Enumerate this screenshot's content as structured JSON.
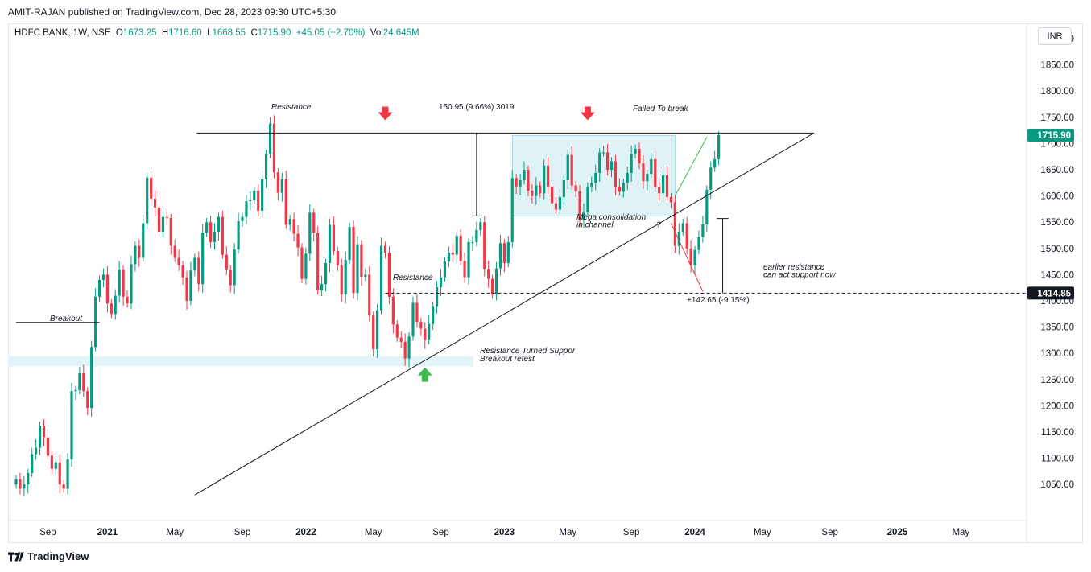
{
  "header": {
    "published_line": "AMIT-RAJAN published on TradingView.com, Dec 28, 2023 09:30 UTC+5:30"
  },
  "legend": {
    "symbol": "HDFC BANK, 1W, NSE",
    "o_label": "O",
    "o_value": "1673.25",
    "h_label": "H",
    "h_value": "1716.60",
    "l_label": "L",
    "l_value": "1668.55",
    "c_label": "C",
    "c_value": "1715.90",
    "change": "+45.05 (+2.70%)",
    "vol_label": "Vol",
    "vol_value": "24.645M"
  },
  "currency_button": "INR",
  "footer": {
    "brand": "TradingView"
  },
  "colors": {
    "up": "#089981",
    "down": "#f23645",
    "text": "#131722",
    "grid": "#e0e3eb",
    "zone": "#e3f4f9",
    "box": "#dff3f6"
  },
  "chart_data": {
    "type": "candlestick",
    "title": "HDFC BANK, 1W, NSE",
    "y_axis_ticks": [
      "1050.00",
      "1100.00",
      "1150.00",
      "1200.00",
      "1250.00",
      "1300.00",
      "1350.00",
      "1400.00",
      "1450.00",
      "1500.00",
      "1550.00",
      "1600.00",
      "1650.00",
      "1700.00",
      "1750.00",
      "1800.00",
      "1850.00",
      "1900.00"
    ],
    "y_tick_values": [
      1050,
      1100,
      1150,
      1200,
      1250,
      1300,
      1350,
      1400,
      1450,
      1500,
      1550,
      1600,
      1650,
      1700,
      1750,
      1800,
      1850,
      1900
    ],
    "ylim": [
      1030,
      1940
    ],
    "x_axis_labels": [
      "Sep",
      "2021",
      "May",
      "Sep",
      "2022",
      "May",
      "Sep",
      "2023",
      "May",
      "Sep",
      "2024",
      "May",
      "Sep",
      "2025",
      "May"
    ],
    "x_label_weeks": [
      8,
      23,
      40,
      57,
      73,
      90,
      107,
      123,
      139,
      155,
      171,
      188,
      205,
      222,
      238
    ],
    "price_labels": [
      {
        "value": 1715.9,
        "text": "1715.90",
        "color": "#089981"
      },
      {
        "value": 1414.85,
        "text": "1414.85",
        "color": "#131722"
      }
    ],
    "closes": [
      1060,
      1042,
      1050,
      1072,
      1108,
      1120,
      1162,
      1140,
      1105,
      1080,
      1092,
      1050,
      1042,
      1098,
      1228,
      1230,
      1262,
      1228,
      1196,
      1312,
      1408,
      1440,
      1450,
      1395,
      1375,
      1410,
      1460,
      1408,
      1395,
      1470,
      1505,
      1482,
      1548,
      1635,
      1595,
      1578,
      1532,
      1560,
      1558,
      1505,
      1482,
      1468,
      1445,
      1400,
      1458,
      1482,
      1432,
      1530,
      1550,
      1512,
      1532,
      1560,
      1488,
      1460,
      1430,
      1498,
      1552,
      1560,
      1590,
      1592,
      1610,
      1572,
      1632,
      1680,
      1738,
      1645,
      1606,
      1632,
      1545,
      1556,
      1528,
      1502,
      1442,
      1490,
      1568,
      1530,
      1420,
      1432,
      1472,
      1545,
      1495,
      1468,
      1412,
      1478,
      1541,
      1415,
      1508,
      1446,
      1450,
      1372,
      1308,
      1382,
      1505,
      1492,
      1408,
      1355,
      1330,
      1322,
      1290,
      1332,
      1396,
      1360,
      1347,
      1325,
      1356,
      1390,
      1426,
      1445,
      1475,
      1492,
      1488,
      1524,
      1476,
      1445,
      1512,
      1512,
      1535,
      1550,
      1461,
      1442,
      1412,
      1462,
      1510,
      1472,
      1512,
      1634,
      1618,
      1630,
      1650,
      1610,
      1600,
      1620,
      1605,
      1658,
      1618,
      1586,
      1574,
      1598,
      1630,
      1678,
      1620,
      1609,
      1555,
      1570,
      1618,
      1625,
      1644,
      1683,
      1683,
      1650,
      1666,
      1618,
      1608,
      1625,
      1644,
      1680,
      1690,
      1662,
      1628,
      1642,
      1670,
      1618,
      1605,
      1640,
      1598,
      1588,
      1505,
      1532,
      1548,
      1500,
      1468,
      1497,
      1522,
      1546,
      1612,
      1654,
      1670,
      1715.9
    ],
    "annotations": [
      {
        "text": "Breakout"
      },
      {
        "text": "Resistance"
      },
      {
        "text": "Resistance"
      },
      {
        "text": "150.95 (9.66%) 3019"
      },
      {
        "text": "Failed To break"
      },
      {
        "text": "Mega consolidation"
      },
      {
        "text": "in channel"
      },
      {
        "text": "?"
      },
      {
        "text": "earlier resistance"
      },
      {
        "text": "can act support now"
      },
      {
        "text": "+142.65 (-9.15%)"
      },
      {
        "text": "Resistance Turned Suppor"
      },
      {
        "text": "Breakout retest"
      }
    ]
  }
}
